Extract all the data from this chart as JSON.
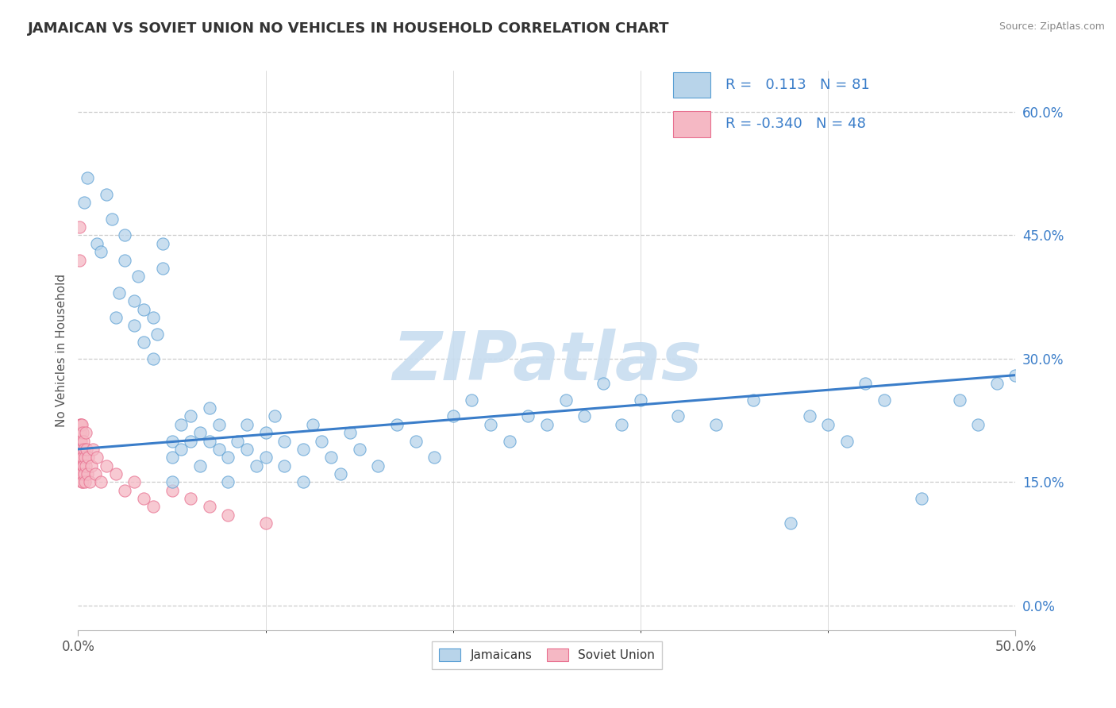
{
  "title": "JAMAICAN VS SOVIET UNION NO VEHICLES IN HOUSEHOLD CORRELATION CHART",
  "source": "Source: ZipAtlas.com",
  "ylabel": "No Vehicles in Household",
  "ytick_vals": [
    0.0,
    15.0,
    30.0,
    45.0,
    60.0
  ],
  "xlim": [
    0.0,
    50.0
  ],
  "ylim": [
    -3.0,
    65.0
  ],
  "r_jamaican": 0.113,
  "n_jamaican": 81,
  "r_soviet": -0.34,
  "n_soviet": 48,
  "blue_face": "#b8d4ea",
  "blue_edge": "#5a9fd4",
  "pink_face": "#f5b8c4",
  "pink_edge": "#e87090",
  "trend_color": "#3a7dc9",
  "grid_color": "#cccccc",
  "watermark_color": "#c8ddf0",
  "jamaican_x": [
    0.3,
    0.5,
    1.0,
    1.2,
    1.5,
    1.8,
    2.0,
    2.2,
    2.5,
    2.5,
    3.0,
    3.0,
    3.2,
    3.5,
    3.5,
    4.0,
    4.0,
    4.2,
    4.5,
    4.5,
    5.0,
    5.0,
    5.0,
    5.5,
    5.5,
    6.0,
    6.0,
    6.5,
    6.5,
    7.0,
    7.0,
    7.5,
    7.5,
    8.0,
    8.0,
    8.5,
    9.0,
    9.0,
    9.5,
    10.0,
    10.0,
    10.5,
    11.0,
    11.0,
    12.0,
    12.0,
    12.5,
    13.0,
    13.5,
    14.0,
    14.5,
    15.0,
    16.0,
    17.0,
    18.0,
    19.0,
    20.0,
    21.0,
    22.0,
    23.0,
    24.0,
    25.0,
    26.0,
    27.0,
    28.0,
    29.0,
    30.0,
    32.0,
    34.0,
    36.0,
    38.0,
    39.0,
    40.0,
    41.0,
    42.0,
    43.0,
    45.0,
    47.0,
    48.0,
    49.0,
    50.0
  ],
  "jamaican_y": [
    49.0,
    52.0,
    44.0,
    43.0,
    50.0,
    47.0,
    35.0,
    38.0,
    45.0,
    42.0,
    37.0,
    34.0,
    40.0,
    36.0,
    32.0,
    35.0,
    30.0,
    33.0,
    44.0,
    41.0,
    20.0,
    18.0,
    15.0,
    22.0,
    19.0,
    23.0,
    20.0,
    21.0,
    17.0,
    24.0,
    20.0,
    22.0,
    19.0,
    18.0,
    15.0,
    20.0,
    22.0,
    19.0,
    17.0,
    21.0,
    18.0,
    23.0,
    20.0,
    17.0,
    19.0,
    15.0,
    22.0,
    20.0,
    18.0,
    16.0,
    21.0,
    19.0,
    17.0,
    22.0,
    20.0,
    18.0,
    23.0,
    25.0,
    22.0,
    20.0,
    23.0,
    22.0,
    25.0,
    23.0,
    27.0,
    22.0,
    25.0,
    23.0,
    22.0,
    25.0,
    10.0,
    23.0,
    22.0,
    20.0,
    27.0,
    25.0,
    13.0,
    25.0,
    22.0,
    27.0,
    28.0
  ],
  "soviet_x": [
    0.05,
    0.08,
    0.1,
    0.1,
    0.12,
    0.12,
    0.13,
    0.14,
    0.15,
    0.15,
    0.15,
    0.16,
    0.17,
    0.18,
    0.19,
    0.2,
    0.2,
    0.22,
    0.23,
    0.25,
    0.27,
    0.28,
    0.3,
    0.32,
    0.35,
    0.38,
    0.4,
    0.42,
    0.45,
    0.5,
    0.55,
    0.6,
    0.7,
    0.8,
    0.9,
    1.0,
    1.2,
    1.5,
    2.0,
    2.5,
    3.0,
    3.5,
    4.0,
    5.0,
    6.0,
    7.0,
    8.0,
    10.0
  ],
  "soviet_y": [
    46.0,
    42.0,
    20.0,
    19.0,
    22.0,
    18.0,
    21.0,
    17.0,
    22.0,
    19.0,
    16.0,
    20.0,
    18.0,
    15.0,
    22.0,
    19.0,
    16.0,
    21.0,
    18.0,
    15.0,
    20.0,
    17.0,
    19.0,
    16.0,
    18.0,
    15.0,
    21.0,
    17.0,
    19.0,
    16.0,
    18.0,
    15.0,
    17.0,
    19.0,
    16.0,
    18.0,
    15.0,
    17.0,
    16.0,
    14.0,
    15.0,
    13.0,
    12.0,
    14.0,
    13.0,
    12.0,
    11.0,
    10.0
  ],
  "trend_x_start": 0.0,
  "trend_x_end": 50.0,
  "trend_y_start": 19.0,
  "trend_y_end": 28.0
}
